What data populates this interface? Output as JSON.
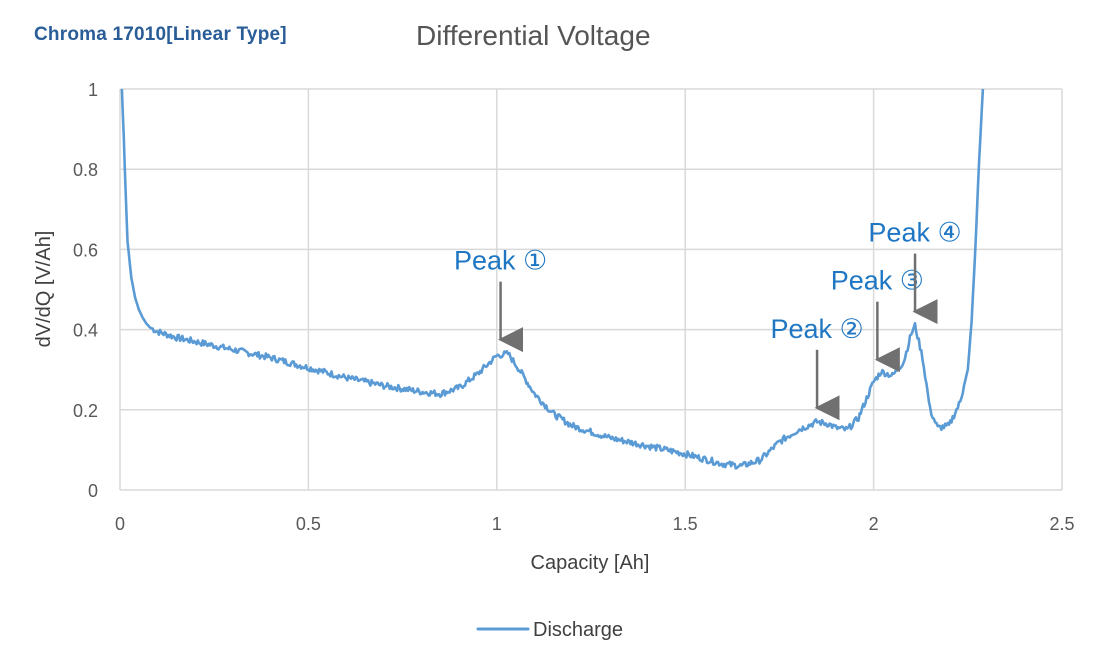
{
  "brand": "Chroma 17010[Linear Type]",
  "chart_data": {
    "type": "line",
    "title": "Differential Voltage",
    "xlabel": "Capacity [Ah]",
    "ylabel": "dV/dQ [V/Ah]",
    "xlim": [
      0,
      2.5
    ],
    "ylim": [
      0,
      1
    ],
    "xticks": [
      0,
      0.5,
      1,
      1.5,
      2,
      2.5
    ],
    "xtick_labels": [
      "0",
      "0.5",
      "1",
      "1.5",
      "2",
      "2.5"
    ],
    "yticks": [
      0,
      0.2,
      0.4,
      0.6,
      0.8,
      1
    ],
    "ytick_labels": [
      "0",
      "0.2",
      "0.4",
      "0.6",
      "0.8",
      "1"
    ],
    "grid": true,
    "legend_position": "bottom",
    "series": [
      {
        "name": "Discharge",
        "color": "#5b9bd5",
        "x": [
          0.005,
          0.01,
          0.015,
          0.02,
          0.03,
          0.04,
          0.05,
          0.06,
          0.07,
          0.08,
          0.1,
          0.15,
          0.2,
          0.3,
          0.4,
          0.5,
          0.6,
          0.7,
          0.8,
          0.85,
          0.9,
          0.95,
          1.0,
          1.03,
          1.06,
          1.1,
          1.15,
          1.2,
          1.3,
          1.4,
          1.5,
          1.6,
          1.65,
          1.7,
          1.75,
          1.8,
          1.85,
          1.88,
          1.9,
          1.93,
          1.96,
          2.0,
          2.02,
          2.05,
          2.08,
          2.1,
          2.11,
          2.13,
          2.15,
          2.17,
          2.2,
          2.23,
          2.25,
          2.26,
          2.27,
          2.28,
          2.29
        ],
        "y": [
          1.0,
          0.88,
          0.74,
          0.62,
          0.53,
          0.48,
          0.45,
          0.43,
          0.415,
          0.405,
          0.395,
          0.38,
          0.37,
          0.35,
          0.33,
          0.305,
          0.28,
          0.26,
          0.245,
          0.24,
          0.255,
          0.29,
          0.335,
          0.34,
          0.3,
          0.24,
          0.19,
          0.16,
          0.13,
          0.11,
          0.09,
          0.065,
          0.06,
          0.075,
          0.12,
          0.15,
          0.17,
          0.165,
          0.155,
          0.15,
          0.18,
          0.27,
          0.295,
          0.285,
          0.32,
          0.39,
          0.41,
          0.33,
          0.2,
          0.155,
          0.16,
          0.22,
          0.3,
          0.42,
          0.6,
          0.82,
          1.0
        ]
      }
    ],
    "annotations": [
      {
        "text": "Peak ①",
        "x": 1.01,
        "y": 0.35
      },
      {
        "text": "Peak ②",
        "x": 1.85,
        "y": 0.18
      },
      {
        "text": "Peak ③",
        "x": 2.01,
        "y": 0.3
      },
      {
        "text": "Peak ④",
        "x": 2.11,
        "y": 0.42
      }
    ]
  }
}
